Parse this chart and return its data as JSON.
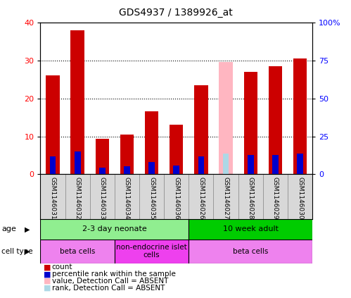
{
  "title": "GDS4937 / 1389926_at",
  "samples": [
    "GSM1146031",
    "GSM1146032",
    "GSM1146033",
    "GSM1146034",
    "GSM1146035",
    "GSM1146036",
    "GSM1146026",
    "GSM1146027",
    "GSM1146028",
    "GSM1146029",
    "GSM1146030"
  ],
  "count_values": [
    26,
    38,
    9.3,
    10.5,
    16.5,
    13,
    23.5,
    0,
    27,
    28.5,
    30.5
  ],
  "rank_values": [
    12,
    15,
    4.5,
    5.5,
    8,
    6,
    12,
    0,
    12.5,
    12.5,
    13.5
  ],
  "absent_count": [
    0,
    0,
    0,
    0,
    0,
    0,
    0,
    29.5,
    0,
    0,
    0
  ],
  "absent_rank": [
    0,
    0,
    0,
    0,
    0,
    0,
    0,
    13.5,
    0,
    0,
    0
  ],
  "is_absent": [
    false,
    false,
    false,
    false,
    false,
    false,
    false,
    true,
    false,
    false,
    false
  ],
  "ylim_left": [
    0,
    40
  ],
  "ylim_right": [
    0,
    100
  ],
  "yticks_left": [
    0,
    10,
    20,
    30,
    40
  ],
  "yticks_right": [
    0,
    25,
    50,
    75,
    100
  ],
  "yticklabels_right": [
    "0",
    "25",
    "50",
    "75",
    "100%"
  ],
  "age_groups": [
    {
      "label": "2-3 day neonate",
      "start": 0,
      "end": 6,
      "color": "#90EE90"
    },
    {
      "label": "10 week adult",
      "start": 6,
      "end": 11,
      "color": "#00CC00"
    }
  ],
  "cell_type_groups": [
    {
      "label": "beta cells",
      "start": 0,
      "end": 3,
      "color": "#EE82EE"
    },
    {
      "label": "non-endocrine islet\ncells",
      "start": 3,
      "end": 6,
      "color": "#EE40EE"
    },
    {
      "label": "beta cells",
      "start": 6,
      "end": 11,
      "color": "#EE82EE"
    }
  ],
  "legend_items": [
    {
      "label": "count",
      "color": "#CC0000"
    },
    {
      "label": "percentile rank within the sample",
      "color": "#0000CC"
    },
    {
      "label": "value, Detection Call = ABSENT",
      "color": "#FFB6C1"
    },
    {
      "label": "rank, Detection Call = ABSENT",
      "color": "#ADD8E6"
    }
  ],
  "bar_color_red": "#CC0000",
  "bar_color_blue": "#0000CC",
  "bar_color_pink": "#FFB6C1",
  "bar_color_lightblue": "#ADD8E6",
  "bar_width": 0.55,
  "blue_bar_width": 0.25
}
